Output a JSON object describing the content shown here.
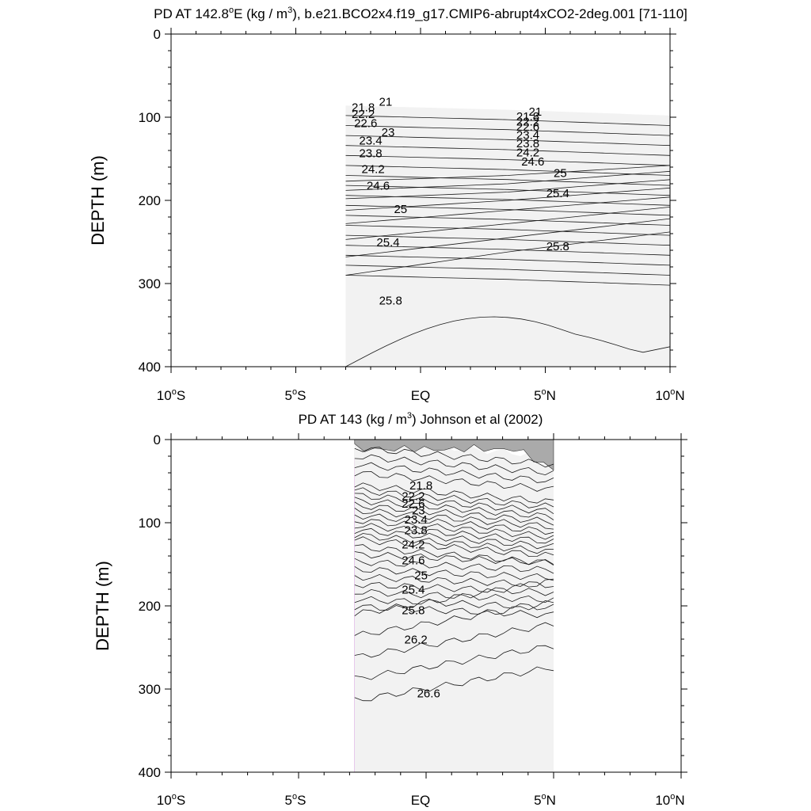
{
  "chart_data": [
    {
      "type": "contour",
      "title_prefix": "PD AT 142.8",
      "title_sup_deg": "o",
      "title_mid": "E (kg / m",
      "title_sup_exp": "3",
      "title_suffix": "), b.e21.BCO2x4.f19_g17.CMIP6-abrupt4xCO2-2deg.001 [71-110]",
      "ylabel": "DEPTH (m)",
      "ylim": [
        0,
        400
      ],
      "xlim": [
        -10,
        10
      ],
      "yticks": [
        "0",
        "100",
        "200",
        "300",
        "400"
      ],
      "xticks": [
        {
          "num": "10",
          "deg": "o",
          "hem": "S"
        },
        {
          "num": "5",
          "deg": "o",
          "hem": "S"
        },
        {
          "num": "EQ",
          "deg": "",
          "hem": ""
        },
        {
          "num": "5",
          "deg": "o",
          "hem": "N"
        },
        {
          "num": "10",
          "deg": "o",
          "hem": "N"
        }
      ],
      "data_lon_range": [
        -3,
        10
      ],
      "contour_levels": [
        21,
        21.2,
        21.4,
        21.6,
        21.8,
        22,
        22.2,
        22.4,
        22.6,
        22.8,
        23,
        23.2,
        23.4,
        23.6,
        23.8,
        24,
        24.2,
        24.4,
        24.6,
        24.8,
        25,
        25.2,
        25.4,
        25.6,
        25.8,
        26
      ],
      "contour_labels": [
        {
          "text": "21",
          "lon": -1.4,
          "depth": 86
        },
        {
          "text": "21.8",
          "lon": -2.3,
          "depth": 93
        },
        {
          "text": "22.2",
          "lon": -2.3,
          "depth": 101
        },
        {
          "text": "22.6",
          "lon": -2.2,
          "depth": 112
        },
        {
          "text": "23",
          "lon": -1.3,
          "depth": 123
        },
        {
          "text": "23.4",
          "lon": -2.0,
          "depth": 133
        },
        {
          "text": "23.8",
          "lon": -2.0,
          "depth": 148
        },
        {
          "text": "24.2",
          "lon": -1.9,
          "depth": 167
        },
        {
          "text": "24.6",
          "lon": -1.7,
          "depth": 187
        },
        {
          "text": "25",
          "lon": -0.8,
          "depth": 215
        },
        {
          "text": "25.4",
          "lon": -1.3,
          "depth": 255
        },
        {
          "text": "25.8",
          "lon": -1.2,
          "depth": 325
        },
        {
          "text": "21",
          "lon": 4.6,
          "depth": 98
        },
        {
          "text": "21.8",
          "lon": 4.3,
          "depth": 104
        },
        {
          "text": "22.2",
          "lon": 4.3,
          "depth": 110
        },
        {
          "text": "22.6",
          "lon": 4.3,
          "depth": 116
        },
        {
          "text": "23.4",
          "lon": 4.3,
          "depth": 126
        },
        {
          "text": "23.8",
          "lon": 4.3,
          "depth": 136
        },
        {
          "text": "24.2",
          "lon": 4.3,
          "depth": 147
        },
        {
          "text": "24.6",
          "lon": 4.5,
          "depth": 158
        },
        {
          "text": "25",
          "lon": 5.6,
          "depth": 172
        },
        {
          "text": "25.4",
          "lon": 5.5,
          "depth": 196
        },
        {
          "text": "25.8",
          "lon": 5.5,
          "depth": 260
        }
      ]
    },
    {
      "type": "contour",
      "title": "PD AT 143 (kg / m",
      "title_sup_exp": "3",
      "title_suffix": ") Johnson et al (2002)",
      "ylabel": "DEPTH (m)",
      "ylim": [
        0,
        400
      ],
      "xlim": [
        -10,
        10
      ],
      "yticks": [
        "0",
        "100",
        "200",
        "300",
        "400"
      ],
      "xticks": [
        {
          "num": "10",
          "deg": "o",
          "hem": "S"
        },
        {
          "num": "5",
          "deg": "o",
          "hem": "S"
        },
        {
          "num": "EQ",
          "deg": "",
          "hem": ""
        },
        {
          "num": "5",
          "deg": "o",
          "hem": "N"
        },
        {
          "num": "10",
          "deg": "o",
          "hem": "N"
        }
      ],
      "data_lon_range": [
        -2.8,
        5
      ],
      "contour_levels": [
        21,
        21.2,
        21.4,
        21.6,
        21.8,
        22,
        22.2,
        22.4,
        22.6,
        22.8,
        23,
        23.2,
        23.4,
        23.6,
        23.8,
        24,
        24.2,
        24.4,
        24.6,
        24.8,
        25,
        25.2,
        25.4,
        25.6,
        25.8,
        26,
        26.2,
        26.4,
        26.6,
        26.8
      ],
      "contour_labels": [
        {
          "text": "21.8",
          "lon": -0.2,
          "depth": 60
        },
        {
          "text": "22.2",
          "lon": -0.5,
          "depth": 73
        },
        {
          "text": "22.6",
          "lon": -0.5,
          "depth": 82
        },
        {
          "text": "23",
          "lon": -0.3,
          "depth": 90
        },
        {
          "text": "23.4",
          "lon": -0.4,
          "depth": 101
        },
        {
          "text": "23.8",
          "lon": -0.4,
          "depth": 114
        },
        {
          "text": "24.2",
          "lon": -0.5,
          "depth": 131
        },
        {
          "text": "24.6",
          "lon": -0.5,
          "depth": 150
        },
        {
          "text": "25",
          "lon": -0.2,
          "depth": 168
        },
        {
          "text": "25.4",
          "lon": -0.5,
          "depth": 185
        },
        {
          "text": "25.8",
          "lon": -0.5,
          "depth": 210
        },
        {
          "text": "26.2",
          "lon": -0.4,
          "depth": 245
        },
        {
          "text": "26.6",
          "lon": 0.1,
          "depth": 310
        }
      ]
    }
  ]
}
